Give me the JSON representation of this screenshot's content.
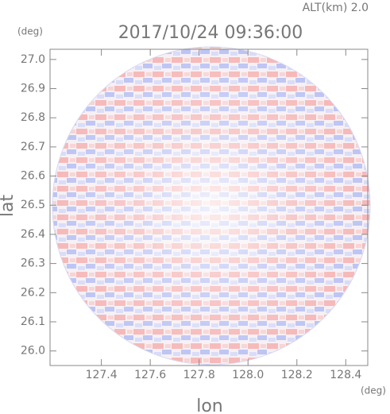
{
  "chart_data": {
    "type": "radar",
    "title": "2017/10/24 09:36:00",
    "subtitle": "ALT(km) 2.0",
    "x_label": "lon",
    "y_label": "lat",
    "x_unit": "(deg)",
    "y_unit": "(deg)",
    "xlim": [
      127.19,
      128.49
    ],
    "ylim": [
      25.95,
      27.035
    ],
    "xticks": [
      127.4,
      127.6,
      127.8,
      {
        "value": 128.0,
        "label": "128.0"
      },
      128.2,
      128.4
    ],
    "yticks": [
      {
        "value": 26.0,
        "label": "26.0"
      },
      26.1,
      26.2,
      26.3,
      26.4,
      26.5,
      26.6,
      26.7,
      26.8,
      26.9,
      {
        "value": 27.0,
        "label": "27.0"
      }
    ]
  }
}
